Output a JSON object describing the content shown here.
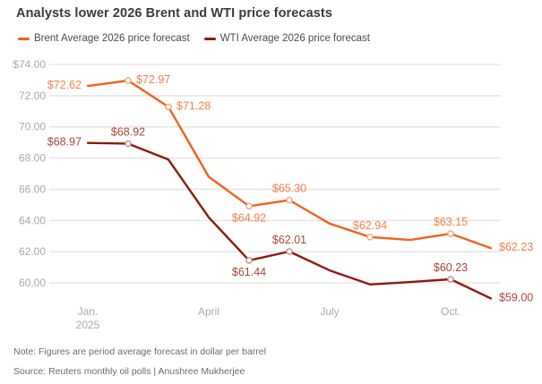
{
  "page": {
    "title": "Analysts lower 2026 Brent and WTI price forecasts",
    "note": "Note: Figures are period average forecast in dollar per barrel",
    "source": "Source: Reuters monthly oil polls | Anushree Mukherjee"
  },
  "legend": {
    "items": [
      {
        "label": "Brent Average 2026 price forecast",
        "color": "#F3601B"
      },
      {
        "label": "WTI Average 2026 price forecast",
        "color": "#8E190E"
      }
    ]
  },
  "colors": {
    "background": "#FFFFFF",
    "title_text": "#3A3A3A",
    "legend_text": "#4B4B4B",
    "axis_text": "#ACA9A7",
    "grid": "#E8E6E4",
    "note_text": "#6B6B6B",
    "brent_line": "#F3601B",
    "brent_label": "#F0804E",
    "brent_marker": "#F5A478",
    "wti_line": "#8E190E",
    "wti_label": "#AC4438",
    "wti_marker": "#C98A80"
  },
  "chart_data": {
    "type": "line",
    "title": "Analysts lower 2026 Brent and WTI price forecasts",
    "xlabel": "",
    "ylabel": "dollar per barrel",
    "grid": "horizontal",
    "legend_position": "top",
    "x_categories": [
      "Jan 2025",
      "Feb 2025",
      "Mar 2025",
      "Apr 2025",
      "May 2025",
      "Jun 2025",
      "Jul 2025",
      "Aug 2025",
      "Sep 2025",
      "Oct 2025",
      "Nov 2025"
    ],
    "x_tick_labels": [
      {
        "month_index": 0,
        "lines": [
          "Jan.",
          "2025"
        ]
      },
      {
        "month_index": 3,
        "lines": [
          "April"
        ]
      },
      {
        "month_index": 6,
        "lines": [
          "July"
        ]
      },
      {
        "month_index": 9,
        "lines": [
          "Oct."
        ]
      }
    ],
    "y_axis": {
      "tick_labels": [
        "$74.00",
        "72.00",
        "70.00",
        "68.00",
        "66.00",
        "64.00",
        "62.00",
        "60.00"
      ],
      "tick_values": [
        74,
        72,
        70,
        68,
        66,
        64,
        62,
        60
      ],
      "ylim": [
        58.5,
        74.6
      ]
    },
    "series": [
      {
        "name": "Brent Average 2026 price forecast",
        "slug": "brent",
        "color": "#F3601B",
        "label_color": "#F0804E",
        "marker_color": "#F5A478",
        "values": [
          72.62,
          72.97,
          71.28,
          66.8,
          64.92,
          65.3,
          63.8,
          62.94,
          62.75,
          63.15,
          62.23
        ],
        "points": [
          {
            "month": "Jan 2025",
            "value": 72.62,
            "label": "$72.62",
            "label_pos": "left",
            "marker": false
          },
          {
            "month": "Feb 2025",
            "value": 72.97,
            "label": "$72.97",
            "label_pos": "right",
            "marker": true
          },
          {
            "month": "Mar 2025",
            "value": 71.28,
            "label": "$71.28",
            "label_pos": "right",
            "marker": true
          },
          {
            "month": "Apr 2025",
            "value": 66.8,
            "label": "",
            "label_pos": "",
            "marker": false,
            "approx": true
          },
          {
            "month": "May 2025",
            "value": 64.92,
            "label": "$64.92",
            "label_pos": "below",
            "marker": true
          },
          {
            "month": "Jun 2025",
            "value": 65.3,
            "label": "$65.30",
            "label_pos": "above",
            "marker": true
          },
          {
            "month": "Jul 2025",
            "value": 63.8,
            "label": "",
            "label_pos": "",
            "marker": false,
            "approx": true
          },
          {
            "month": "Aug 2025",
            "value": 62.94,
            "label": "$62.94",
            "label_pos": "above",
            "marker": true
          },
          {
            "month": "Sep 2025",
            "value": 62.75,
            "label": "",
            "label_pos": "",
            "marker": false,
            "approx": true
          },
          {
            "month": "Oct 2025",
            "value": 63.15,
            "label": "$63.15",
            "label_pos": "above",
            "marker": true
          },
          {
            "month": "Nov 2025",
            "value": 62.23,
            "label": "$62.23",
            "label_pos": "right",
            "marker": false
          }
        ]
      },
      {
        "name": "WTI Average 2026 price forecast",
        "slug": "wti",
        "color": "#8E190E",
        "label_color": "#AC4438",
        "marker_color": "#C98A80",
        "values": [
          68.97,
          68.92,
          67.9,
          64.2,
          61.44,
          62.01,
          60.8,
          59.9,
          60.05,
          60.23,
          59.0
        ],
        "points": [
          {
            "month": "Jan 2025",
            "value": 68.97,
            "label": "$68.97",
            "label_pos": "left",
            "marker": false
          },
          {
            "month": "Feb 2025",
            "value": 68.92,
            "label": "$68.92",
            "label_pos": "above",
            "marker": true
          },
          {
            "month": "Mar 2025",
            "value": 67.9,
            "label": "",
            "label_pos": "",
            "marker": false,
            "approx": true
          },
          {
            "month": "Apr 2025",
            "value": 64.2,
            "label": "",
            "label_pos": "",
            "marker": false,
            "approx": true
          },
          {
            "month": "May 2025",
            "value": 61.44,
            "label": "$61.44",
            "label_pos": "below",
            "marker": true
          },
          {
            "month": "Jun 2025",
            "value": 62.01,
            "label": "$62.01",
            "label_pos": "above",
            "marker": true
          },
          {
            "month": "Jul 2025",
            "value": 60.8,
            "label": "",
            "label_pos": "",
            "marker": false,
            "approx": true
          },
          {
            "month": "Aug 2025",
            "value": 59.9,
            "label": "",
            "label_pos": "",
            "marker": false,
            "approx": true
          },
          {
            "month": "Sep 2025",
            "value": 60.05,
            "label": "",
            "label_pos": "",
            "marker": false,
            "approx": true
          },
          {
            "month": "Oct 2025",
            "value": 60.23,
            "label": "$60.23",
            "label_pos": "above",
            "marker": true
          },
          {
            "month": "Nov 2025",
            "value": 59.0,
            "label": "$59.00",
            "label_pos": "right",
            "marker": false
          }
        ]
      }
    ]
  }
}
